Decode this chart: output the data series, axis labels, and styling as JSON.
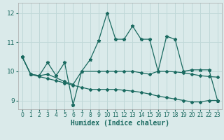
{
  "xlabel": "Humidex (Indice chaleur)",
  "background_color": "#daeaea",
  "grid_color": "#c0d8d8",
  "line_color": "#1a6a60",
  "xlim": [
    -0.5,
    23.5
  ],
  "ylim": [
    8.7,
    12.35
  ],
  "yticks": [
    9,
    10,
    11,
    12
  ],
  "xticks": [
    0,
    1,
    2,
    3,
    4,
    5,
    6,
    7,
    8,
    9,
    10,
    11,
    12,
    13,
    14,
    15,
    16,
    17,
    18,
    19,
    20,
    21,
    22,
    23
  ],
  "line1_x": [
    0,
    1,
    2,
    3,
    4,
    5,
    6,
    7,
    8,
    9,
    10,
    11,
    12,
    13,
    14,
    15,
    16,
    17,
    18,
    19,
    20,
    21,
    22,
    23
  ],
  "line1_y": [
    10.5,
    9.9,
    9.85,
    10.3,
    9.85,
    10.3,
    8.85,
    10.0,
    10.4,
    11.05,
    12.0,
    11.1,
    11.1,
    11.55,
    11.1,
    11.1,
    10.0,
    11.2,
    11.1,
    10.0,
    10.05,
    10.05,
    10.05,
    9.0
  ],
  "line2_x": [
    0,
    1,
    2,
    3,
    5,
    6,
    7,
    9,
    10,
    11,
    12,
    13,
    14,
    15,
    16,
    17,
    18,
    19,
    20,
    21,
    22,
    23
  ],
  "line2_y": [
    10.5,
    9.9,
    9.85,
    9.9,
    9.65,
    9.55,
    10.0,
    10.0,
    10.0,
    10.0,
    10.0,
    10.0,
    9.95,
    9.9,
    10.0,
    10.0,
    9.98,
    9.95,
    9.9,
    9.85,
    9.82,
    9.8
  ],
  "line3_x": [
    0,
    1,
    2,
    3,
    4,
    5,
    6,
    7,
    8,
    9,
    10,
    11,
    12,
    13,
    14,
    15,
    16,
    17,
    18,
    19,
    20,
    21,
    22,
    23
  ],
  "line3_y": [
    10.5,
    9.9,
    9.82,
    9.75,
    9.68,
    9.6,
    9.52,
    9.45,
    9.38,
    9.38,
    9.38,
    9.38,
    9.35,
    9.32,
    9.28,
    9.22,
    9.15,
    9.1,
    9.05,
    9.0,
    8.95,
    8.95,
    9.0,
    9.0
  ]
}
